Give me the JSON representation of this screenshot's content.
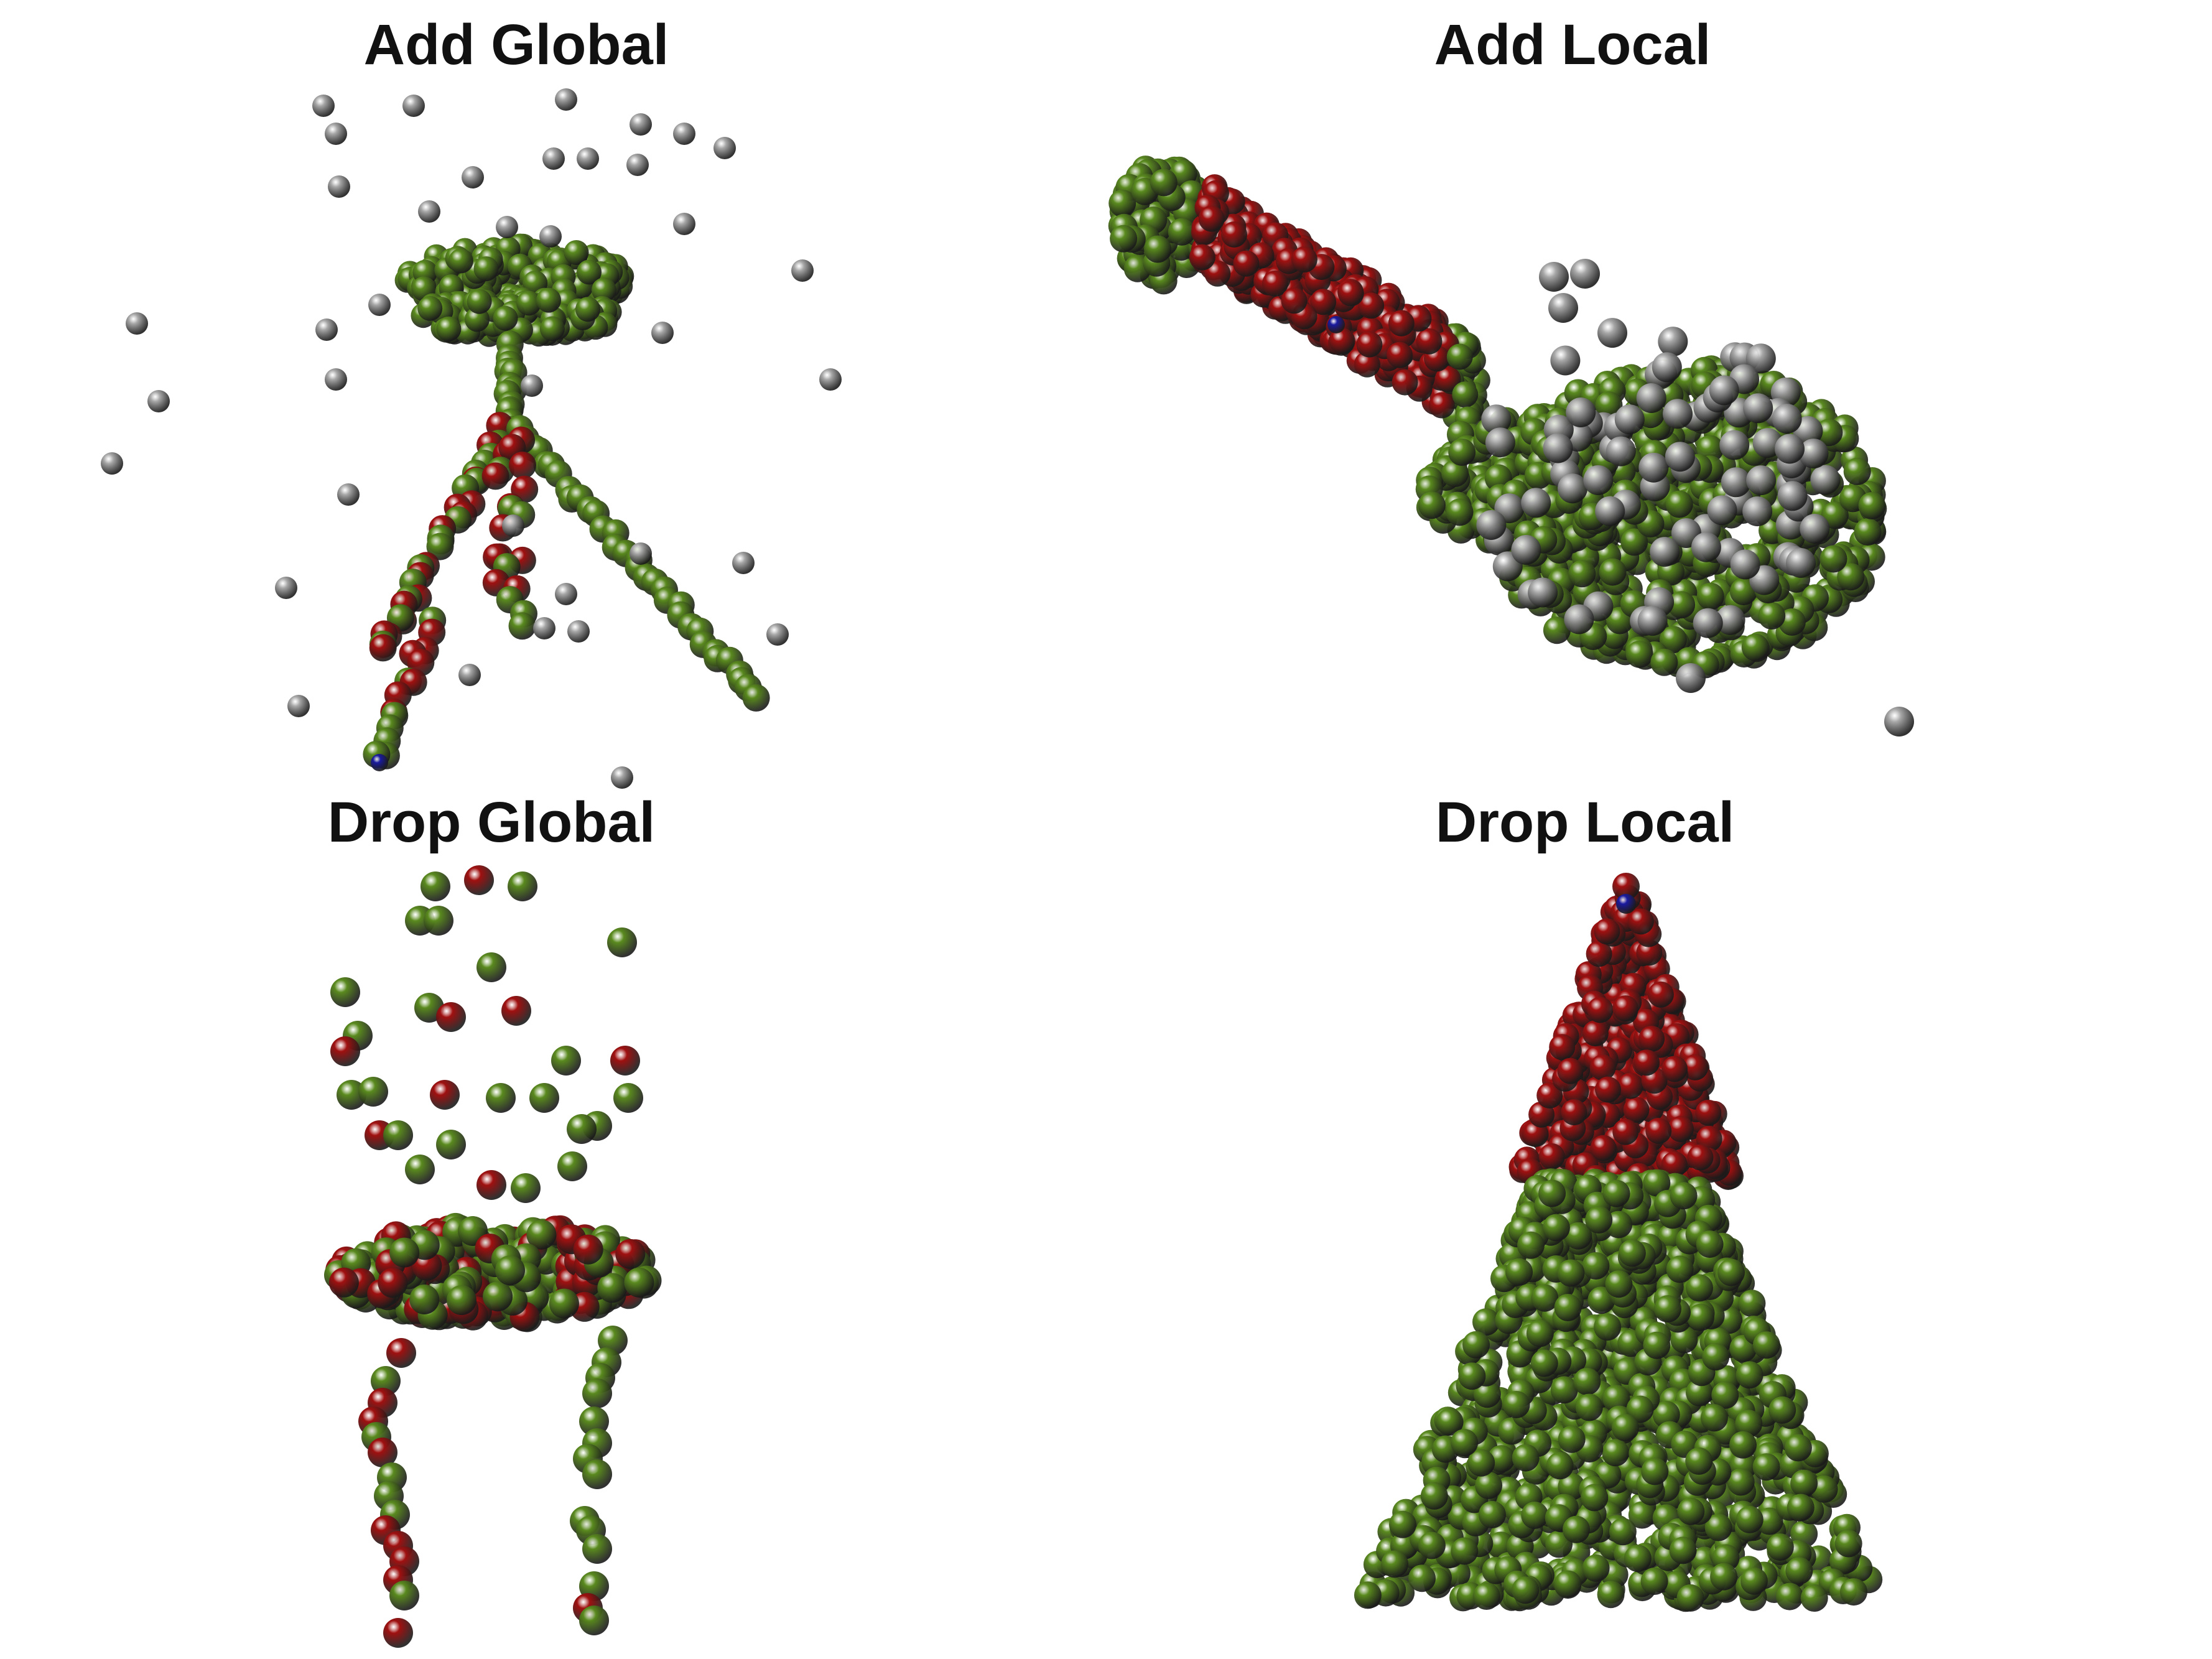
{
  "figure": {
    "panels": [
      {
        "id": "add-global",
        "title": "Add Global",
        "object": "stool"
      },
      {
        "id": "add-local",
        "title": "Add Local",
        "object": "guitar"
      },
      {
        "id": "drop-global",
        "title": "Drop Global",
        "object": "stool"
      },
      {
        "id": "drop-local",
        "title": "Drop Local",
        "object": "cone-shaped object"
      }
    ],
    "colors": {
      "original_point": "#5a8a1e",
      "perturbed_point": "#a01010",
      "added_point": "#a8a8a8",
      "anchor_point": "#1a1aa0",
      "background": "#ffffff"
    }
  }
}
